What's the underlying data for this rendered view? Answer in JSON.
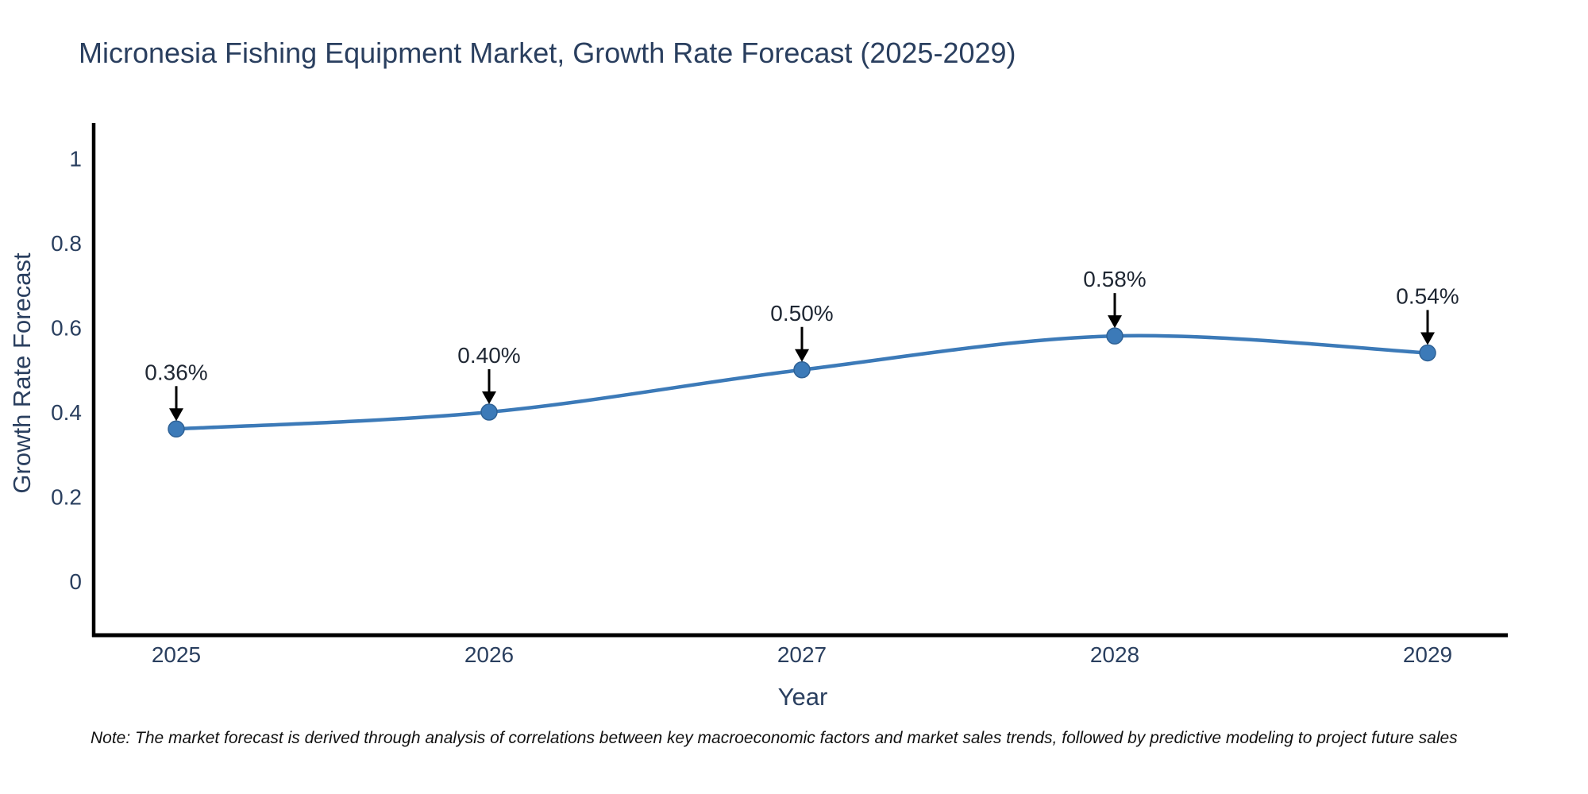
{
  "note": "Note: The market forecast is derived through analysis of correlations between key macroeconomic factors and market sales trends, followed by predictive modeling to project future sales",
  "chart_data": {
    "type": "line",
    "title": "Micronesia Fishing Equipment Market, Growth Rate Forecast (2025-2029)",
    "xlabel": "Year",
    "ylabel": "Growth Rate Forecast",
    "x": [
      2025,
      2026,
      2027,
      2028,
      2029
    ],
    "values": [
      0.36,
      0.4,
      0.5,
      0.58,
      0.54
    ],
    "point_labels": [
      "0.36%",
      "0.40%",
      "0.50%",
      "0.58%",
      "0.54%"
    ],
    "x_ticks": [
      "2025",
      "2026",
      "2027",
      "2028",
      "2029"
    ],
    "y_ticks": [
      "1",
      "0.8",
      "0.6",
      "0.4",
      "0.2",
      "0"
    ],
    "y_tick_values": [
      1,
      0.8,
      0.6,
      0.4,
      0.2,
      0
    ],
    "ylim": [
      -0.13,
      1.08
    ],
    "line_shape": "spline",
    "grid": false,
    "legend": "none",
    "annotation_style": "black-arrow-down-to-point",
    "colors": {
      "line": "#3c7ab8",
      "marker": "#3c7ab8",
      "marker_edge": "#2f6296",
      "axis": "#000000",
      "text": "#2a3f5f",
      "annotation": "#1f2733",
      "background": "#ffffff"
    }
  }
}
